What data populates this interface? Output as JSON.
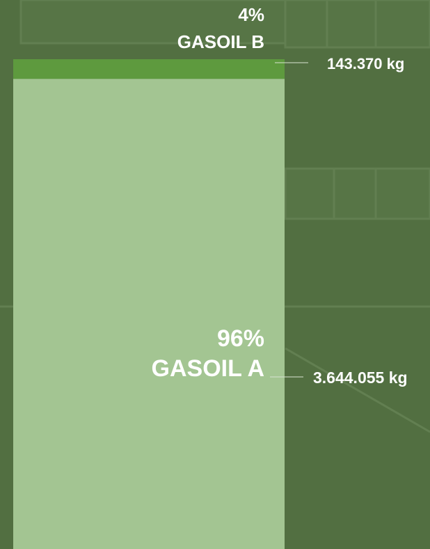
{
  "chart_data": {
    "type": "bar",
    "stacked": true,
    "categories": [
      null
    ],
    "ylim": [
      0,
      100
    ],
    "series": [
      {
        "name": "GASOIL A",
        "color": "#a3c592",
        "values": [
          96
        ],
        "value_labels": [
          "96%"
        ],
        "weight_kg": [
          3644055
        ],
        "weight_labels": [
          "3.644.055 kg"
        ]
      },
      {
        "name": "GASOIL B",
        "color": "#5e9a3e",
        "values": [
          4
        ],
        "value_labels": [
          "4%"
        ],
        "weight_kg": [
          143370
        ],
        "weight_labels": [
          "143.370 kg"
        ]
      }
    ]
  }
}
